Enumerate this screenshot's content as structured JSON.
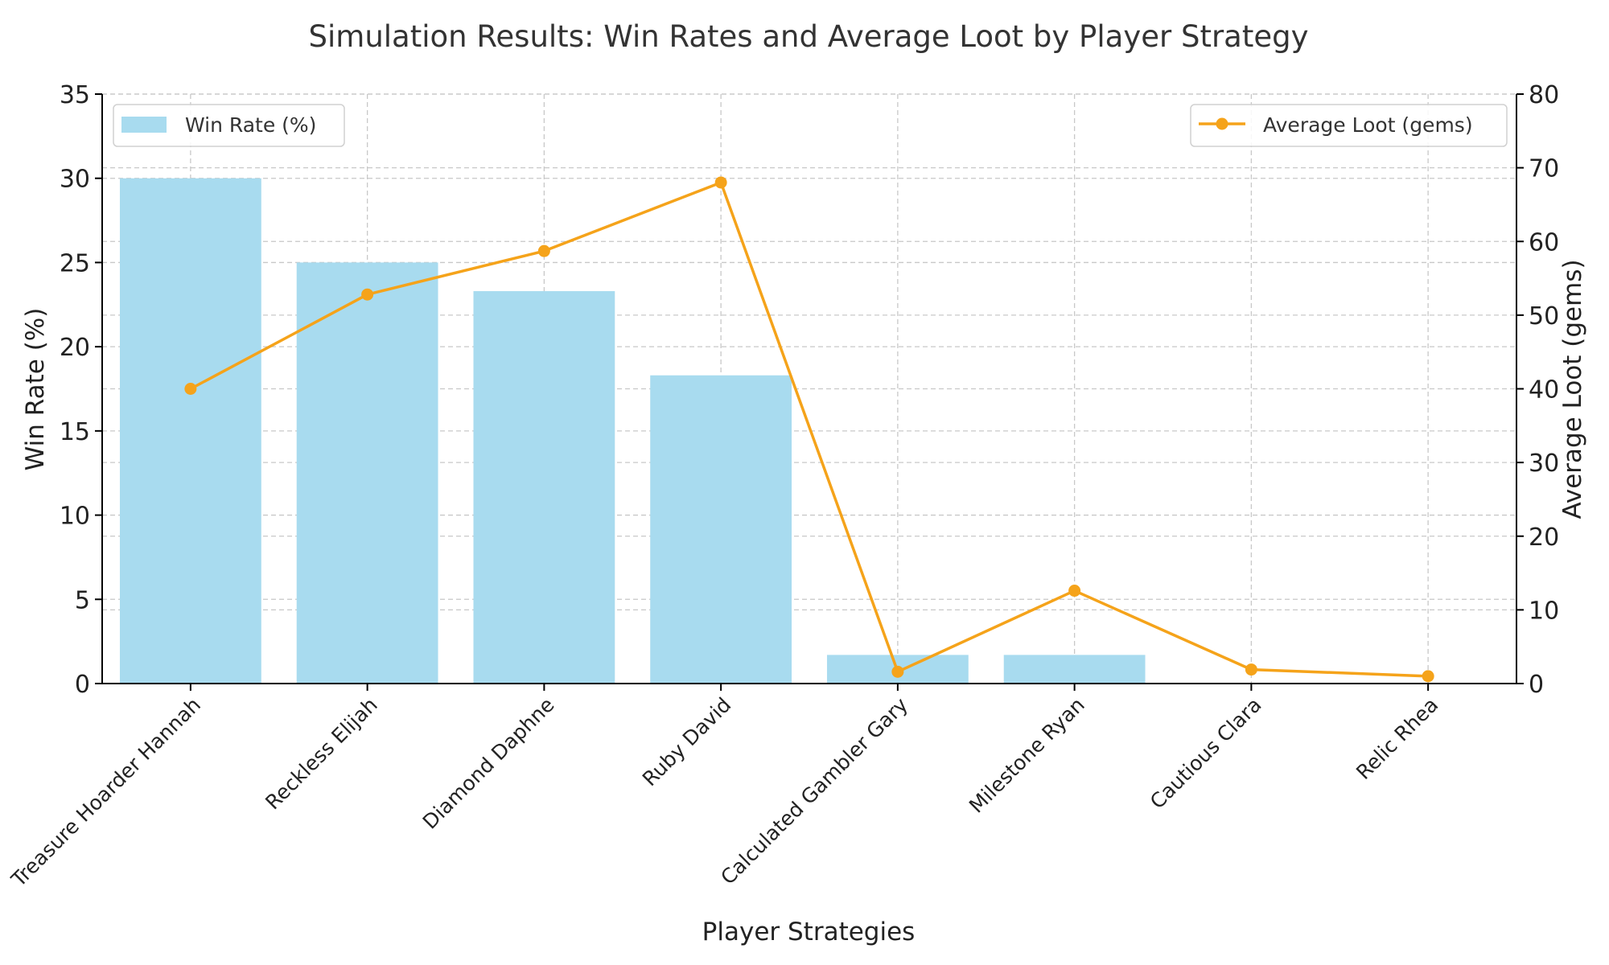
{
  "chart_data": {
    "type": "bar+line",
    "title": "Simulation Results: Win Rates and Average Loot by Player Strategy",
    "xlabel": "Player Strategies",
    "ylabel_left": "Win Rate (%)",
    "ylabel_right": "Average Loot (gems)",
    "categories": [
      "Treasure Hoarder Hannah",
      "Reckless Elijah",
      "Diamond Daphne",
      "Ruby David",
      "Calculated Gambler Gary",
      "Milestone Ryan",
      "Cautious Clara",
      "Relic Rhea"
    ],
    "ylim_left": [
      0,
      35
    ],
    "yticks_left": [
      0,
      5,
      10,
      15,
      20,
      25,
      30,
      35
    ],
    "ylim_right": [
      0,
      80
    ],
    "yticks_right": [
      0,
      10,
      20,
      30,
      40,
      50,
      60,
      70,
      80
    ],
    "grid": true,
    "series": [
      {
        "name": "Win Rate (%)",
        "type": "bar",
        "axis": "left",
        "color": "#a8dbef",
        "values": [
          30.0,
          25.0,
          23.3,
          18.3,
          1.7,
          1.7,
          0.0,
          0.0
        ]
      },
      {
        "name": "Average Loot (gems)",
        "type": "line",
        "axis": "right",
        "color": "#f5a31a",
        "values": [
          40.0,
          52.8,
          58.7,
          68.0,
          1.6,
          12.6,
          1.9,
          1.0
        ]
      }
    ],
    "legend_left": "top-left",
    "legend_right": "top-right"
  }
}
